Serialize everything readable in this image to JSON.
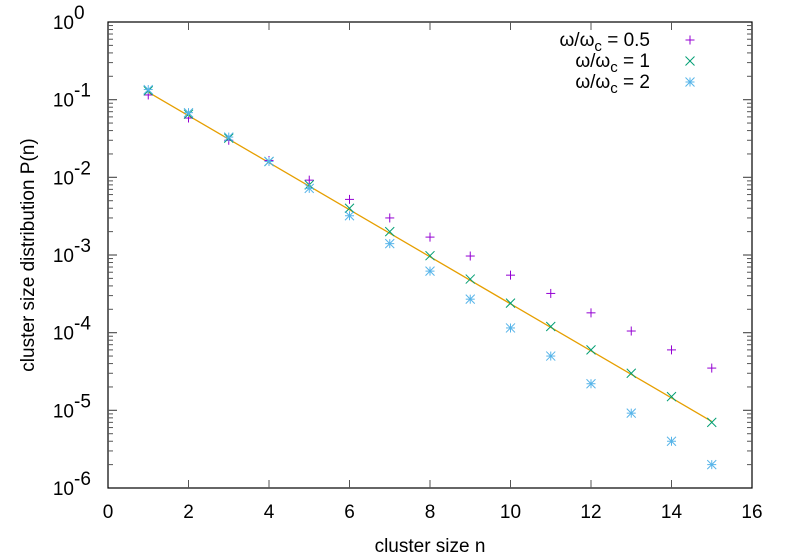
{
  "chart_data": {
    "type": "scatter",
    "title": "",
    "xlabel": "cluster size n",
    "ylabel": "cluster size distribution P(n)",
    "xlim": [
      0,
      16
    ],
    "ylim": [
      1e-06,
      1
    ],
    "yscale": "log",
    "grid": false,
    "legend_position": "top-right",
    "x_ticks": [
      0,
      2,
      4,
      6,
      8,
      10,
      12,
      14,
      16
    ],
    "y_ticks": [
      {
        "exp": 0,
        "label": "10",
        "sup": "0"
      },
      {
        "exp": -1,
        "label": "10",
        "sup": "-1"
      },
      {
        "exp": -2,
        "label": "10",
        "sup": "-2"
      },
      {
        "exp": -3,
        "label": "10",
        "sup": "-3"
      },
      {
        "exp": -4,
        "label": "10",
        "sup": "-4"
      },
      {
        "exp": -5,
        "label": "10",
        "sup": "-5"
      },
      {
        "exp": -6,
        "label": "10",
        "sup": "-6"
      }
    ],
    "x": [
      1,
      2,
      3,
      4,
      5,
      6,
      7,
      8,
      9,
      10,
      11,
      12,
      13,
      14,
      15
    ],
    "series": [
      {
        "name": "ω/ω_c = 0.5",
        "legend_main": "ω/ω",
        "legend_sub": "c",
        "legend_tail": " = 0.5",
        "marker": "plus",
        "color": "#9400d3",
        "values": [
          0.115,
          0.058,
          0.03,
          0.0165,
          0.0092,
          0.0052,
          0.003,
          0.0017,
          0.00097,
          0.00055,
          0.00032,
          0.00018,
          0.000105,
          6e-05,
          3.5e-05
        ]
      },
      {
        "name": "ω/ω_c = 1",
        "legend_main": "ω/ω",
        "legend_sub": "c",
        "legend_tail": " = 1",
        "marker": "cross",
        "color": "#009e73",
        "values": [
          0.13,
          0.065,
          0.032,
          0.016,
          0.008,
          0.004,
          0.002,
          0.00098,
          0.00049,
          0.00024,
          0.00012,
          6e-05,
          3e-05,
          1.5e-05,
          7e-06
        ]
      },
      {
        "name": "ω/ω_c = 2",
        "legend_main": "ω/ω",
        "legend_sub": "c",
        "legend_tail": " = 2",
        "marker": "star",
        "color": "#56b4e9",
        "values": [
          0.135,
          0.068,
          0.033,
          0.016,
          0.0072,
          0.0032,
          0.0014,
          0.00062,
          0.00027,
          0.000115,
          5e-05,
          2.2e-05,
          9.2e-06,
          4e-06,
          2e-06
        ]
      }
    ],
    "fit_line": {
      "color": "#e69f00",
      "x_start": 1,
      "x_end": 15,
      "y_start": 0.125,
      "y_end": 7.2e-06
    }
  }
}
